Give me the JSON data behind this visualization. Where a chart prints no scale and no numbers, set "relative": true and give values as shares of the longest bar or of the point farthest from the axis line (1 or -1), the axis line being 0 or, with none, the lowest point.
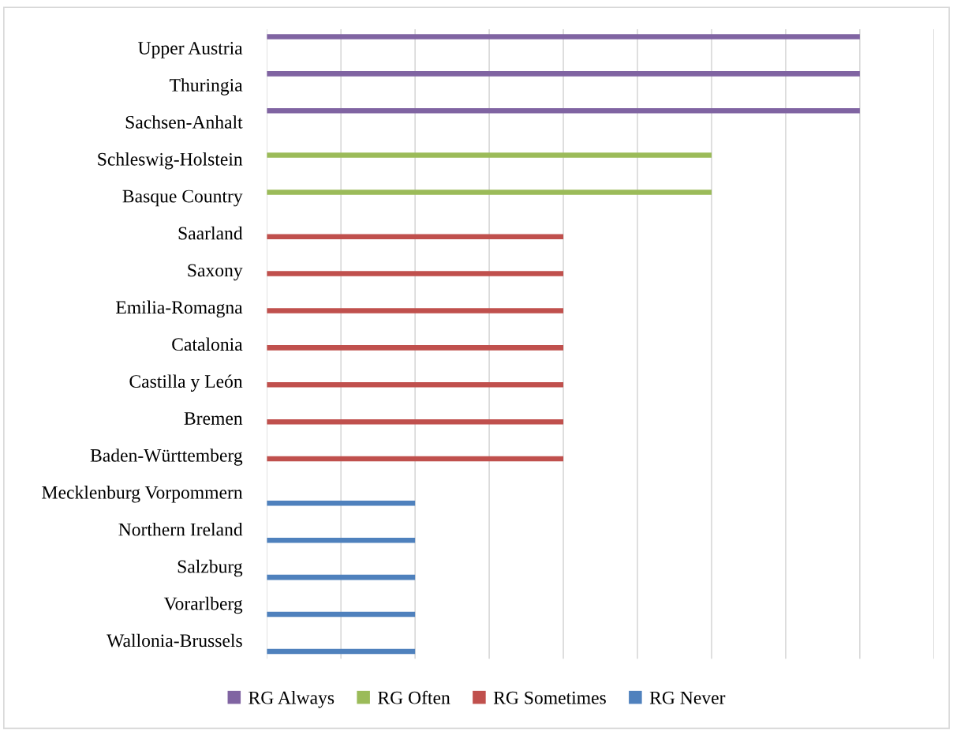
{
  "chart_data": {
    "type": "bar",
    "orientation": "horizontal",
    "relative": true,
    "grid": "x",
    "legend": "bottom",
    "categories": [
      "Upper Austria",
      "Thuringia",
      "Sachsen-Anhalt",
      "Schleswig-Holstein",
      "Basque Country",
      "Saarland",
      "Saxony",
      "Emilia-Romagna",
      "Catalonia",
      "Castilla y León",
      "Bremen",
      "Baden-Württemberg",
      "Mecklenburg Vorpommern",
      "Northern Ireland",
      "Salzburg",
      "Vorarlberg",
      "Wallonia-Brussels"
    ],
    "series": [
      {
        "name": "RG Always",
        "color": "#8064a2",
        "values": [
          1,
          1,
          1,
          null,
          null,
          null,
          null,
          null,
          null,
          null,
          null,
          null,
          null,
          null,
          null,
          null,
          null
        ]
      },
      {
        "name": "RG Often",
        "color": "#9bbb59",
        "values": [
          null,
          null,
          null,
          0.75,
          0.75,
          null,
          null,
          null,
          null,
          null,
          null,
          null,
          null,
          null,
          null,
          null,
          null
        ]
      },
      {
        "name": "RG Sometimes",
        "color": "#c0504d",
        "values": [
          null,
          null,
          null,
          null,
          null,
          0.5,
          0.5,
          0.5,
          0.5,
          0.5,
          0.5,
          0.5,
          null,
          null,
          null,
          null,
          null
        ]
      },
      {
        "name": "RG Never",
        "color": "#4f81bd",
        "values": [
          null,
          null,
          null,
          null,
          null,
          null,
          null,
          null,
          null,
          null,
          null,
          null,
          0.25,
          0.25,
          0.25,
          0.25,
          0.25
        ]
      }
    ]
  }
}
